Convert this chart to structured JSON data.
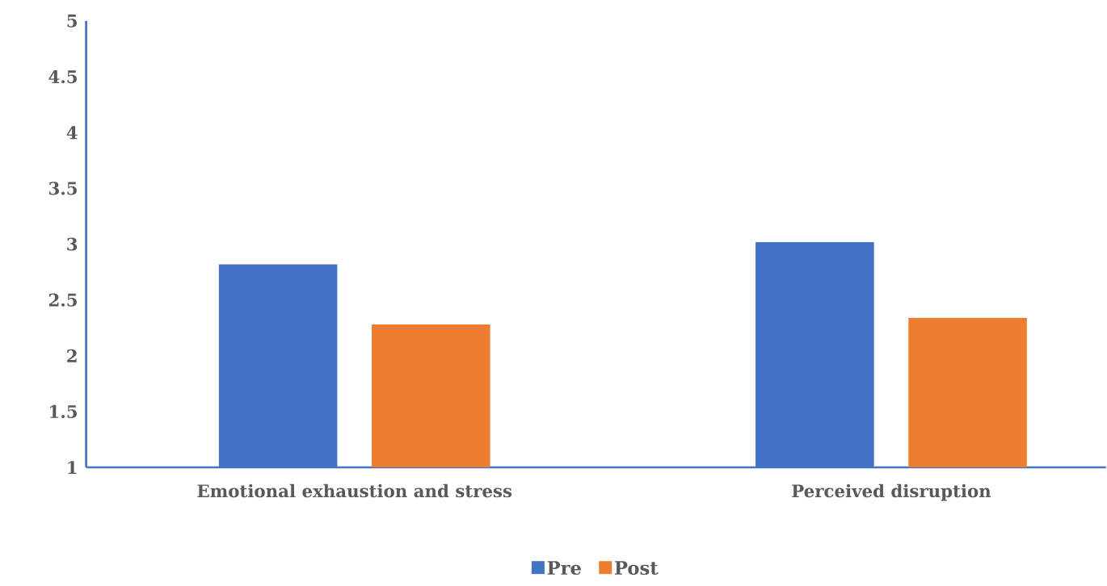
{
  "chart_data": {
    "type": "bar",
    "categories": [
      "Emotional exhaustion and stress",
      "Perceived disruption"
    ],
    "series": [
      {
        "name": "Pre",
        "color": "#4472c4",
        "values": [
          2.82,
          3.02
        ]
      },
      {
        "name": "Post",
        "color": "#ed7d31",
        "values": [
          2.28,
          2.34
        ]
      }
    ],
    "ylim": [
      1,
      5
    ],
    "yticks": [
      1,
      1.5,
      2,
      2.5,
      3,
      3.5,
      4,
      4.5,
      5
    ],
    "grid": false,
    "legend": "bottom"
  }
}
